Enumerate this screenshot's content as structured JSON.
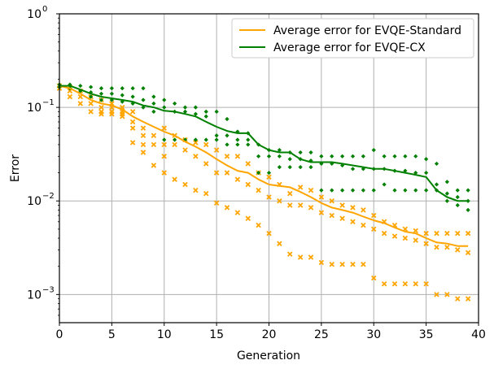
{
  "chart_data": {
    "type": "line",
    "title": "",
    "xlabel": "Generation",
    "ylabel": "Error",
    "xlim": [
      0,
      40
    ],
    "ylim": [
      0.0005,
      1
    ],
    "yscale": "log",
    "grid": true,
    "legend_position": "top-right",
    "x_ticks": [
      0,
      5,
      10,
      15,
      20,
      25,
      30,
      35,
      40
    ],
    "x_tick_labels": [
      "0",
      "5",
      "10",
      "15",
      "20",
      "25",
      "30",
      "35",
      "40"
    ],
    "y_ticks": [
      0.001,
      0.01,
      0.1,
      1
    ],
    "y_tick_labels": [
      {
        "base": "10",
        "exp": "−3"
      },
      {
        "base": "10",
        "exp": "−2"
      },
      {
        "base": "10",
        "exp": "−1"
      },
      {
        "base": "10",
        "exp": "0"
      }
    ],
    "series": [
      {
        "name": "Average error for EVQE-Standard",
        "color": "#ffa500",
        "kind": "line",
        "x": [
          0,
          1,
          2,
          3,
          4,
          5,
          6,
          7,
          8,
          9,
          10,
          11,
          12,
          13,
          14,
          15,
          16,
          17,
          18,
          19,
          20,
          21,
          22,
          23,
          24,
          25,
          26,
          27,
          28,
          29,
          30,
          31,
          32,
          33,
          34,
          35,
          36,
          37,
          38,
          39
        ],
        "y": [
          0.17,
          0.16,
          0.14,
          0.12,
          0.11,
          0.105,
          0.095,
          0.08,
          0.07,
          0.062,
          0.055,
          0.05,
          0.043,
          0.038,
          0.033,
          0.028,
          0.024,
          0.021,
          0.02,
          0.017,
          0.015,
          0.0145,
          0.014,
          0.0125,
          0.011,
          0.0095,
          0.0085,
          0.008,
          0.0075,
          0.0068,
          0.0062,
          0.0058,
          0.0052,
          0.0047,
          0.0045,
          0.004,
          0.0036,
          0.0035,
          0.0033,
          0.0033
        ]
      },
      {
        "name": "Average error for EVQE-CX",
        "color": "#008000",
        "kind": "line",
        "x": [
          0,
          1,
          2,
          3,
          4,
          5,
          6,
          7,
          8,
          9,
          10,
          11,
          12,
          13,
          14,
          15,
          16,
          17,
          18,
          19,
          20,
          21,
          22,
          23,
          24,
          25,
          26,
          27,
          28,
          29,
          30,
          31,
          32,
          33,
          34,
          35,
          36,
          37,
          38,
          39
        ],
        "y": [
          0.17,
          0.17,
          0.155,
          0.14,
          0.13,
          0.125,
          0.12,
          0.115,
          0.105,
          0.1,
          0.092,
          0.09,
          0.085,
          0.08,
          0.07,
          0.062,
          0.056,
          0.053,
          0.053,
          0.04,
          0.035,
          0.033,
          0.033,
          0.028,
          0.026,
          0.026,
          0.026,
          0.025,
          0.024,
          0.023,
          0.022,
          0.022,
          0.021,
          0.02,
          0.019,
          0.018,
          0.013,
          0.011,
          0.01,
          0.01
        ]
      },
      {
        "name": "",
        "color": "#ffa500",
        "kind": "scatter-x",
        "x": [
          0,
          0,
          1,
          1,
          1,
          2,
          2,
          2,
          3,
          3,
          3,
          4,
          4,
          4,
          4,
          5,
          5,
          5,
          5,
          6,
          6,
          6,
          6,
          7,
          7,
          7,
          7,
          8,
          8,
          8,
          8,
          9,
          9,
          9,
          10,
          10,
          10,
          10,
          11,
          11,
          11,
          12,
          12,
          12,
          13,
          13,
          13,
          14,
          14,
          14,
          15,
          15,
          15,
          16,
          16,
          16,
          17,
          17,
          17,
          18,
          18,
          18,
          19,
          19,
          19,
          20,
          20,
          20,
          21,
          21,
          21,
          22,
          22,
          22,
          23,
          23,
          23,
          24,
          24,
          24,
          25,
          25,
          25,
          26,
          26,
          26,
          27,
          27,
          27,
          28,
          28,
          28,
          29,
          29,
          29,
          30,
          30,
          30,
          31,
          31,
          31,
          32,
          32,
          32,
          33,
          33,
          33,
          34,
          34,
          34,
          35,
          35,
          35,
          36,
          36,
          36,
          37,
          37,
          37,
          38,
          38,
          38,
          39,
          39,
          39
        ],
        "y": [
          0.17,
          0.16,
          0.165,
          0.15,
          0.13,
          0.15,
          0.13,
          0.11,
          0.13,
          0.11,
          0.09,
          0.12,
          0.1,
          0.09,
          0.085,
          0.11,
          0.1,
          0.09,
          0.085,
          0.1,
          0.09,
          0.085,
          0.08,
          0.09,
          0.07,
          0.06,
          0.042,
          0.06,
          0.05,
          0.04,
          0.033,
          0.05,
          0.04,
          0.024,
          0.06,
          0.04,
          0.03,
          0.02,
          0.05,
          0.04,
          0.017,
          0.045,
          0.035,
          0.015,
          0.042,
          0.03,
          0.013,
          0.04,
          0.025,
          0.012,
          0.035,
          0.02,
          0.0095,
          0.03,
          0.02,
          0.0085,
          0.03,
          0.017,
          0.0075,
          0.025,
          0.015,
          0.0065,
          0.02,
          0.013,
          0.0055,
          0.018,
          0.011,
          0.0045,
          0.015,
          0.01,
          0.0035,
          0.012,
          0.009,
          0.0027,
          0.014,
          0.009,
          0.0025,
          0.013,
          0.0085,
          0.0025,
          0.011,
          0.0075,
          0.0022,
          0.01,
          0.007,
          0.0021,
          0.009,
          0.0065,
          0.0021,
          0.0085,
          0.006,
          0.0021,
          0.008,
          0.0055,
          0.0021,
          0.007,
          0.005,
          0.0015,
          0.006,
          0.0045,
          0.0013,
          0.0055,
          0.0042,
          0.0013,
          0.005,
          0.004,
          0.0013,
          0.0048,
          0.0038,
          0.0013,
          0.0045,
          0.0035,
          0.0013,
          0.0045,
          0.0032,
          0.001,
          0.0045,
          0.0032,
          0.001,
          0.0045,
          0.003,
          0.0009,
          0.0045,
          0.0028,
          0.0009
        ]
      },
      {
        "name": "",
        "color": "#008000",
        "kind": "scatter-diamond",
        "x": [
          0,
          0,
          1,
          1,
          2,
          2,
          3,
          3,
          3,
          4,
          4,
          4,
          5,
          5,
          5,
          6,
          6,
          6,
          7,
          7,
          7,
          8,
          8,
          8,
          9,
          9,
          9,
          10,
          10,
          10,
          11,
          11,
          11,
          12,
          12,
          12,
          13,
          13,
          13,
          14,
          14,
          14,
          15,
          15,
          15,
          16,
          16,
          16,
          17,
          17,
          17,
          18,
          18,
          18,
          19,
          19,
          19,
          20,
          20,
          20,
          21,
          21,
          21,
          22,
          22,
          22,
          23,
          23,
          23,
          24,
          24,
          24,
          25,
          25,
          25,
          26,
          26,
          26,
          27,
          27,
          27,
          28,
          28,
          28,
          29,
          29,
          29,
          30,
          30,
          30,
          31,
          31,
          31,
          32,
          32,
          32,
          33,
          33,
          33,
          34,
          34,
          34,
          35,
          35,
          35,
          36,
          36,
          36,
          37,
          37,
          37,
          38,
          38,
          38,
          39,
          39,
          39
        ],
        "y": [
          0.175,
          0.165,
          0.175,
          0.16,
          0.17,
          0.15,
          0.165,
          0.145,
          0.13,
          0.16,
          0.14,
          0.12,
          0.16,
          0.14,
          0.12,
          0.16,
          0.135,
          0.115,
          0.16,
          0.13,
          0.11,
          0.16,
          0.12,
          0.1,
          0.13,
          0.11,
          0.09,
          0.12,
          0.1,
          0.045,
          0.11,
          0.09,
          0.045,
          0.1,
          0.09,
          0.045,
          0.1,
          0.085,
          0.045,
          0.09,
          0.08,
          0.045,
          0.09,
          0.05,
          0.045,
          0.075,
          0.05,
          0.04,
          0.055,
          0.045,
          0.04,
          0.053,
          0.045,
          0.04,
          0.04,
          0.03,
          0.02,
          0.035,
          0.03,
          0.02,
          0.035,
          0.03,
          0.023,
          0.033,
          0.028,
          0.023,
          0.033,
          0.028,
          0.023,
          0.033,
          0.027,
          0.023,
          0.03,
          0.025,
          0.013,
          0.03,
          0.025,
          0.013,
          0.03,
          0.024,
          0.013,
          0.03,
          0.022,
          0.013,
          0.03,
          0.022,
          0.013,
          0.035,
          0.022,
          0.013,
          0.03,
          0.022,
          0.015,
          0.03,
          0.021,
          0.013,
          0.03,
          0.021,
          0.013,
          0.03,
          0.02,
          0.013,
          0.028,
          0.02,
          0.013,
          0.025,
          0.015,
          0.013,
          0.016,
          0.012,
          0.01,
          0.013,
          0.011,
          0.009,
          0.013,
          0.01,
          0.008
        ]
      }
    ]
  }
}
